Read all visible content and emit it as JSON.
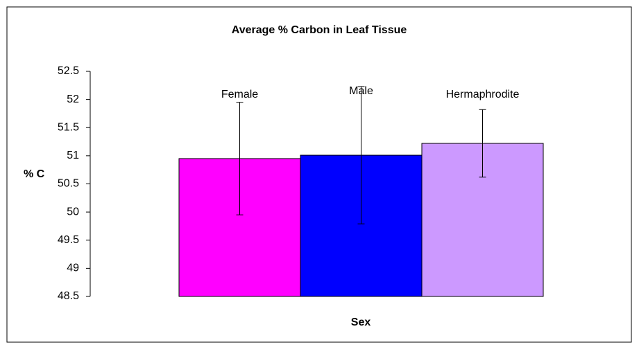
{
  "chart_data": {
    "type": "bar",
    "title": "Average % Carbon in Leaf Tissue",
    "x_label": "Sex",
    "y_label": "% C",
    "categories": [
      "Female",
      "Male",
      "Hermaphrodite"
    ],
    "values": [
      50.95,
      51.01,
      51.22
    ],
    "errors": [
      1.0,
      1.22,
      0.6
    ],
    "colors": [
      "#ff00ff",
      "#0000ff",
      "#cc99ff"
    ],
    "ylim": [
      48.5,
      52.5
    ],
    "yticks": [
      48.5,
      49,
      49.5,
      50,
      50.5,
      51,
      51.5,
      52,
      52.5
    ],
    "grid": false
  }
}
